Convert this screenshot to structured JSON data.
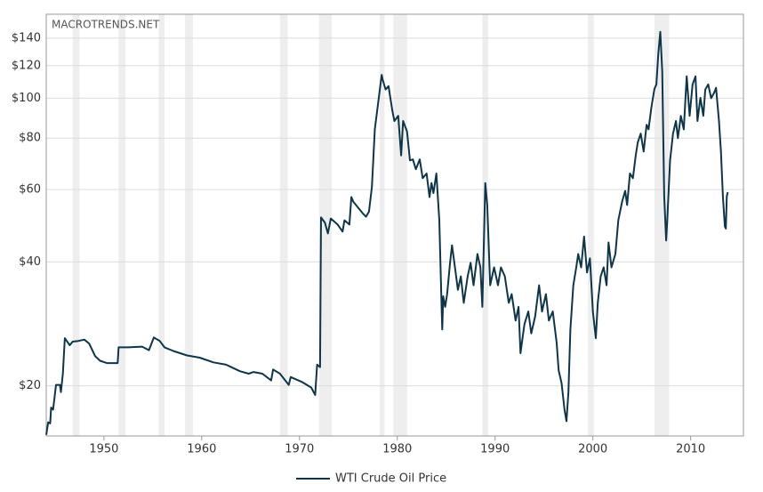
{
  "chart_data": {
    "type": "line",
    "watermark": "MACROTRENDS.NET",
    "log_scale": true,
    "grid": true,
    "legend": "bottom",
    "xlim": [
      1944.1,
      2015.4
    ],
    "xticks": [
      1950,
      1960,
      1970,
      1980,
      1990,
      2000,
      2010
    ],
    "ylim": [
      15.1,
      160
    ],
    "yticks": [
      {
        "value": 20,
        "label": "$20"
      },
      {
        "value": 40,
        "label": "$40"
      },
      {
        "value": 60,
        "label": "$60"
      },
      {
        "value": 80,
        "label": "$80"
      },
      {
        "value": 100,
        "label": "$100"
      },
      {
        "value": 120,
        "label": "$120"
      },
      {
        "value": 140,
        "label": "$140"
      }
    ],
    "shaded_periods": [
      [
        1946.8,
        1947.5
      ],
      [
        1951.5,
        1952.2
      ],
      [
        1955.6,
        1956.2
      ],
      [
        1958.3,
        1959.1
      ],
      [
        1968.0,
        1968.8
      ],
      [
        1972.0,
        1973.3
      ],
      [
        1978.2,
        1978.7
      ],
      [
        1979.6,
        1981.0
      ],
      [
        1988.7,
        1989.3
      ],
      [
        1999.5,
        2000.1
      ],
      [
        2006.3,
        2007.8
      ]
    ],
    "shade_color": "#eeeeee",
    "x": [
      1944.1,
      1944.3,
      1944.5,
      1944.6,
      1944.8,
      1945.1,
      1945.5,
      1945.6,
      1945.8,
      1946.0,
      1946.5,
      1946.8,
      1947.4,
      1948.0,
      1948.5,
      1949.1,
      1949.6,
      1950.3,
      1951.4,
      1951.5,
      1952.5,
      1953.9,
      1954.6,
      1955.1,
      1955.7,
      1956.2,
      1957.1,
      1958.5,
      1959.8,
      1961.2,
      1962.5,
      1963.9,
      1964.8,
      1965.3,
      1966.2,
      1967.1,
      1967.3,
      1968.0,
      1968.9,
      1969.1,
      1970.3,
      1971.2,
      1971.6,
      1971.8,
      1972.1,
      1972.2,
      1972.6,
      1972.9,
      1973.2,
      1973.9,
      1974.4,
      1974.6,
      1975.1,
      1975.3,
      1975.5,
      1976.5,
      1976.8,
      1977.1,
      1977.4,
      1977.7,
      1978.1,
      1978.4,
      1978.5,
      1978.8,
      1979.1,
      1979.5,
      1979.7,
      1980.1,
      1980.4,
      1980.6,
      1981.0,
      1981.3,
      1981.6,
      1981.9,
      1982.3,
      1982.6,
      1983.0,
      1983.3,
      1983.5,
      1983.7,
      1984.0,
      1984.3,
      1984.5,
      1984.6,
      1984.7,
      1984.9,
      1985.1,
      1985.4,
      1985.6,
      1985.9,
      1986.2,
      1986.5,
      1986.8,
      1987.2,
      1987.5,
      1987.8,
      1988.2,
      1988.5,
      1988.7,
      1989.0,
      1989.2,
      1989.5,
      1989.9,
      1990.3,
      1990.6,
      1991.0,
      1991.4,
      1991.7,
      1992.1,
      1992.4,
      1992.6,
      1993.0,
      1993.4,
      1993.7,
      1994.1,
      1994.5,
      1994.8,
      1995.2,
      1995.5,
      1995.9,
      1996.3,
      1996.5,
      1996.8,
      1997.1,
      1997.3,
      1997.5,
      1997.7,
      1998.0,
      1998.3,
      1998.5,
      1998.8,
      1999.1,
      1999.4,
      1999.7,
      2000.0,
      2000.3,
      2000.5,
      2000.8,
      2001.1,
      2001.4,
      2001.6,
      2001.9,
      2002.3,
      2002.6,
      2003.0,
      2003.3,
      2003.5,
      2003.8,
      2004.1,
      2004.4,
      2004.6,
      2004.9,
      2005.2,
      2005.5,
      2005.7,
      2006.0,
      2006.3,
      2006.5,
      2006.7,
      2006.9,
      2007.1,
      2007.3,
      2007.5,
      2007.6,
      2007.9,
      2008.2,
      2008.5,
      2008.7,
      2009.0,
      2009.3,
      2009.6,
      2009.9,
      2010.2,
      2010.5,
      2010.7,
      2011.0,
      2011.3,
      2011.5,
      2011.8,
      2012.1,
      2012.4,
      2012.6,
      2012.9,
      2013.1,
      2013.3,
      2013.5,
      2013.6,
      2013.7,
      2013.8
    ],
    "series": [
      {
        "name": "WTI Crude Oil Price",
        "color": "#0e3548",
        "values": [
          15.2,
          16.3,
          16.2,
          17.7,
          17.5,
          20.1,
          20.1,
          19.3,
          21.4,
          26.1,
          25.1,
          25.6,
          25.7,
          25.9,
          25.3,
          23.6,
          23.0,
          22.7,
          22.7,
          24.8,
          24.8,
          24.9,
          24.4,
          26.2,
          25.7,
          24.8,
          24.3,
          23.7,
          23.4,
          22.8,
          22.5,
          21.7,
          21.4,
          21.6,
          21.4,
          20.6,
          21.9,
          21.4,
          20.1,
          21.0,
          20.4,
          19.8,
          19.0,
          22.5,
          22.2,
          51.3,
          49.8,
          46.9,
          51.0,
          49.3,
          47.4,
          50.5,
          49.3,
          57.5,
          56.0,
          52.4,
          51.5,
          53.0,
          60.8,
          84.1,
          100.0,
          114.0,
          111.0,
          105.0,
          107.0,
          93.0,
          88.0,
          90.6,
          72.6,
          88.0,
          83.0,
          70.6,
          71.0,
          67.2,
          71.0,
          63.9,
          65.6,
          57.5,
          62.2,
          58.8,
          65.6,
          50.5,
          33.4,
          27.4,
          33.0,
          31.1,
          33.4,
          39.8,
          43.9,
          38.8,
          34.2,
          36.9,
          31.8,
          36.9,
          39.8,
          35.1,
          41.8,
          38.8,
          31.1,
          62.2,
          55.0,
          35.1,
          38.8,
          35.1,
          38.8,
          36.9,
          31.8,
          33.4,
          28.8,
          31.1,
          24.0,
          28.2,
          30.3,
          26.8,
          29.5,
          35.1,
          30.3,
          33.4,
          28.8,
          30.3,
          25.4,
          21.8,
          20.3,
          17.5,
          16.4,
          19.3,
          27.4,
          35.1,
          38.8,
          41.8,
          38.8,
          46.1,
          37.7,
          40.8,
          30.3,
          26.1,
          31.8,
          36.9,
          38.8,
          35.1,
          44.6,
          38.8,
          41.8,
          50.5,
          56.2,
          59.5,
          55.0,
          65.6,
          63.9,
          72.9,
          78.1,
          82.0,
          74.2,
          86.2,
          84.0,
          95.3,
          105.3,
          108.0,
          128.5,
          145.0,
          116.0,
          57.8,
          45.1,
          49.8,
          70.6,
          82.0,
          88.0,
          80.0,
          90.6,
          84.0,
          113.0,
          90.6,
          108.0,
          113.0,
          88.0,
          100.2,
          90.6,
          105.0,
          108.0,
          100.0,
          103.0,
          106.0,
          88.0,
          74.2,
          57.8,
          48.8,
          48.2,
          57.8,
          59.1
        ]
      }
    ]
  }
}
